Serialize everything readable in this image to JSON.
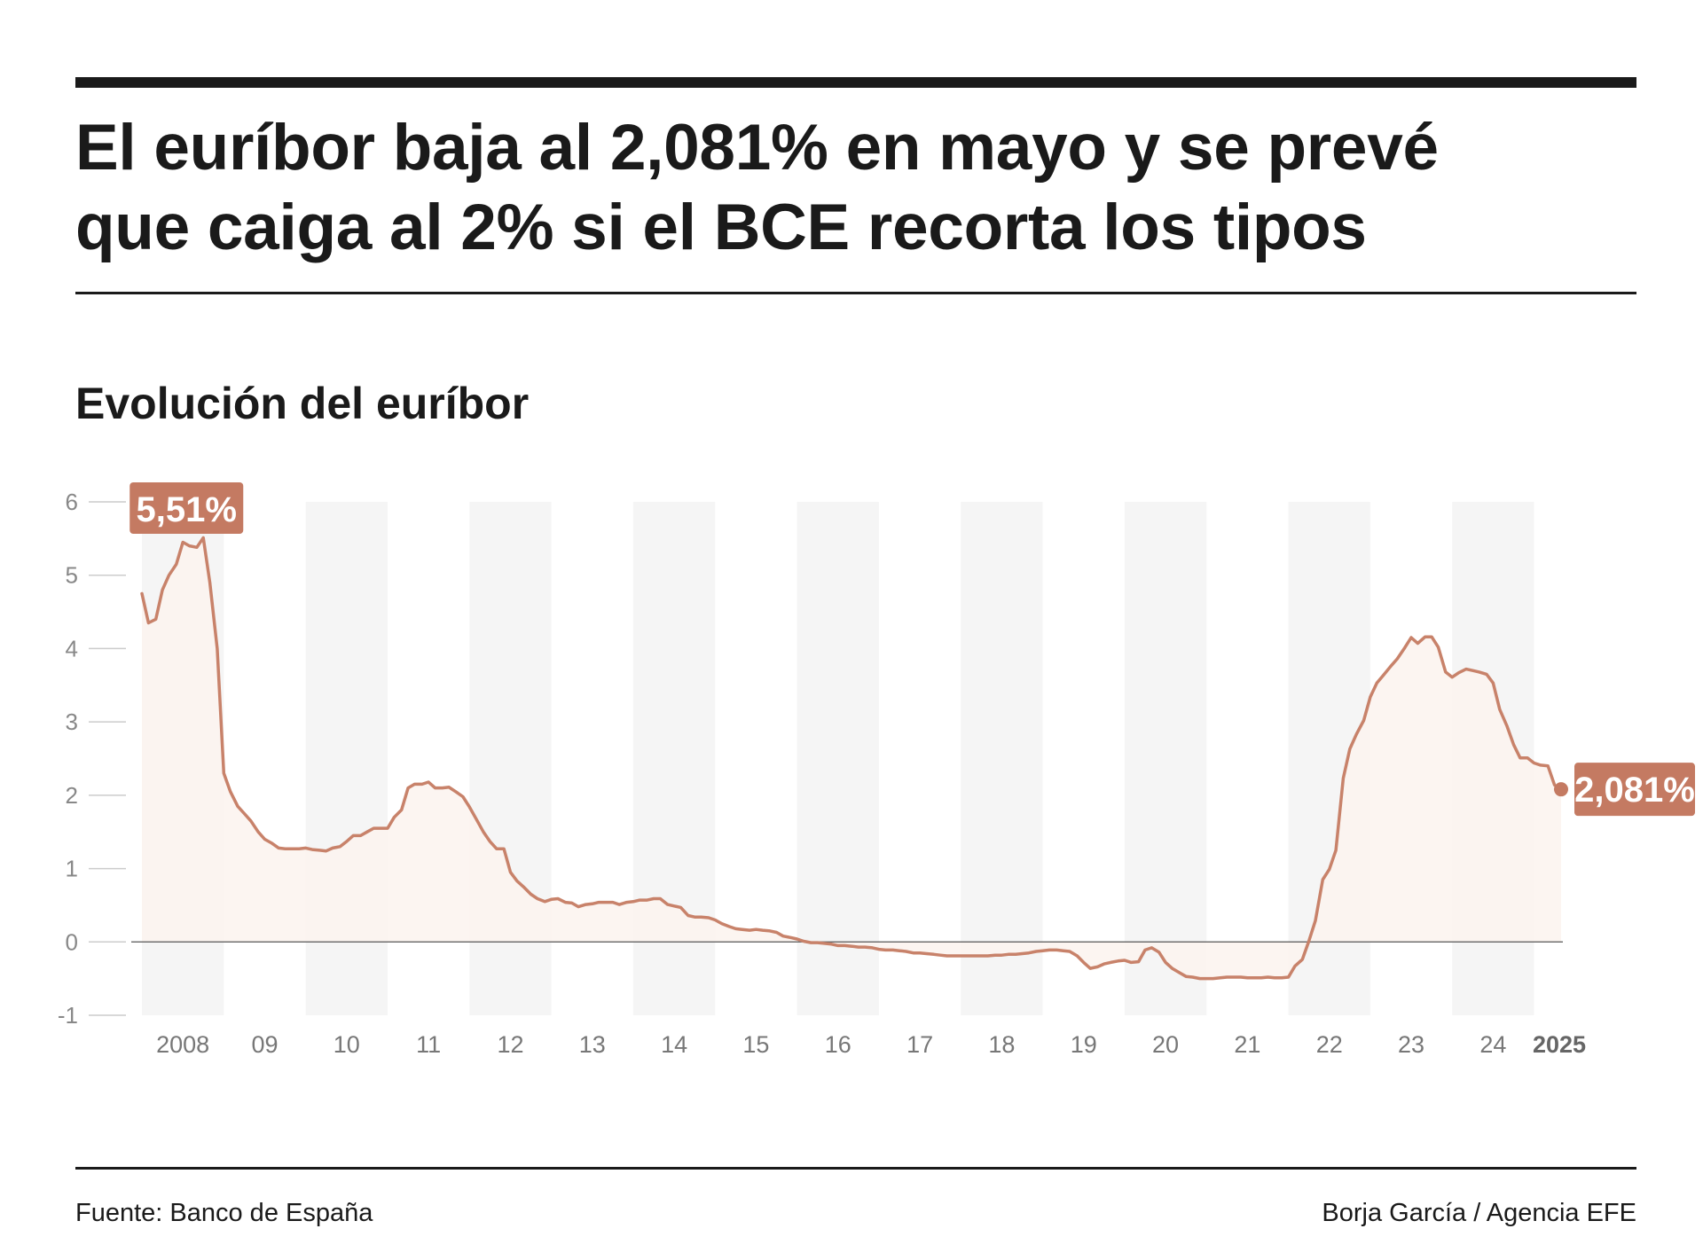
{
  "headline": {
    "line1": "El euríbor baja al 2,081% en mayo y se prevé",
    "line2": "que caiga al 2% si el BCE recorta los tipos"
  },
  "subtitle": "Evolución del euríbor",
  "footer": {
    "source": "Fuente: Banco de España",
    "credit": "Borja García / Agencia EFE"
  },
  "colors": {
    "line": "#c8826a",
    "fill": "#fbf3ef",
    "band": "#f5f5f5",
    "badge": "#c47a62"
  },
  "chart_data": {
    "type": "area",
    "title": "Evolución del euríbor",
    "xlabel": "",
    "ylabel": "",
    "ylim": [
      -1,
      6
    ],
    "yticks": [
      6,
      5,
      4,
      3,
      2,
      1,
      0,
      -1
    ],
    "grid": false,
    "x_tick_labels": [
      {
        "year": 2008,
        "label": "2008",
        "bold": false
      },
      {
        "year": 2009,
        "label": "09",
        "bold": false
      },
      {
        "year": 2010,
        "label": "10",
        "bold": false
      },
      {
        "year": 2011,
        "label": "11",
        "bold": false
      },
      {
        "year": 2012,
        "label": "12",
        "bold": false
      },
      {
        "year": 2013,
        "label": "13",
        "bold": false
      },
      {
        "year": 2014,
        "label": "14",
        "bold": false
      },
      {
        "year": 2015,
        "label": "15",
        "bold": false
      },
      {
        "year": 2016,
        "label": "16",
        "bold": false
      },
      {
        "year": 2017,
        "label": "17",
        "bold": false
      },
      {
        "year": 2018,
        "label": "18",
        "bold": false
      },
      {
        "year": 2019,
        "label": "19",
        "bold": false
      },
      {
        "year": 2020,
        "label": "20",
        "bold": false
      },
      {
        "year": 2021,
        "label": "21",
        "bold": false
      },
      {
        "year": 2022,
        "label": "22",
        "bold": false
      },
      {
        "year": 2023,
        "label": "23",
        "bold": false
      },
      {
        "year": 2024,
        "label": "24",
        "bold": false
      },
      {
        "year": 2025,
        "label": "2025",
        "bold": true
      }
    ],
    "annotations": [
      {
        "text": "5,51%",
        "x": 2008.75,
        "y": 5.51
      },
      {
        "text": "2,081%",
        "x": 2025.33,
        "y": 2.081
      }
    ],
    "series": [
      {
        "x": [
          2008.0,
          2008.08,
          2008.17,
          2008.25,
          2008.33,
          2008.42,
          2008.5,
          2008.58,
          2008.67,
          2008.75,
          2008.83,
          2008.92,
          2009.0,
          2009.08,
          2009.17,
          2009.25,
          2009.33,
          2009.42,
          2009.5,
          2009.58,
          2009.67,
          2009.75,
          2009.83,
          2009.92,
          2010.0,
          2010.08,
          2010.17,
          2010.25,
          2010.33,
          2010.42,
          2010.5,
          2010.58,
          2010.67,
          2010.75,
          2010.83,
          2010.92,
          2011.0,
          2011.08,
          2011.17,
          2011.25,
          2011.33,
          2011.42,
          2011.5,
          2011.58,
          2011.67,
          2011.75,
          2011.83,
          2011.92,
          2012.0,
          2012.08,
          2012.17,
          2012.25,
          2012.33,
          2012.42,
          2012.5,
          2012.58,
          2012.67,
          2012.75,
          2012.83,
          2012.92,
          2013.0,
          2013.08,
          2013.17,
          2013.25,
          2013.33,
          2013.42,
          2013.5,
          2013.58,
          2013.67,
          2013.75,
          2013.83,
          2013.92,
          2014.0,
          2014.08,
          2014.17,
          2014.25,
          2014.33,
          2014.42,
          2014.5,
          2014.58,
          2014.67,
          2014.75,
          2014.83,
          2014.92,
          2015.0,
          2015.08,
          2015.17,
          2015.25,
          2015.33,
          2015.42,
          2015.5,
          2015.58,
          2015.67,
          2015.75,
          2015.83,
          2015.92,
          2016.0,
          2016.08,
          2016.17,
          2016.25,
          2016.33,
          2016.42,
          2016.5,
          2016.58,
          2016.67,
          2016.75,
          2016.83,
          2016.92,
          2017.0,
          2017.08,
          2017.17,
          2017.25,
          2017.33,
          2017.42,
          2017.5,
          2017.58,
          2017.67,
          2017.75,
          2017.83,
          2017.92,
          2018.0,
          2018.08,
          2018.17,
          2018.25,
          2018.33,
          2018.42,
          2018.5,
          2018.58,
          2018.67,
          2018.75,
          2018.83,
          2018.92,
          2019.0,
          2019.08,
          2019.17,
          2019.25,
          2019.33,
          2019.42,
          2019.5,
          2019.58,
          2019.67,
          2019.75,
          2019.83,
          2019.92,
          2020.0,
          2020.08,
          2020.17,
          2020.25,
          2020.33,
          2020.42,
          2020.5,
          2020.58,
          2020.67,
          2020.75,
          2020.83,
          2020.92,
          2021.0,
          2021.08,
          2021.17,
          2021.25,
          2021.33,
          2021.42,
          2021.5,
          2021.58,
          2021.67,
          2021.75,
          2021.83,
          2021.92,
          2022.0,
          2022.08,
          2022.17,
          2022.25,
          2022.33,
          2022.42,
          2022.5,
          2022.58,
          2022.67,
          2022.75,
          2022.83,
          2022.92,
          2023.0,
          2023.08,
          2023.17,
          2023.25,
          2023.33,
          2023.42,
          2023.5,
          2023.58,
          2023.67,
          2023.75,
          2023.83,
          2023.92,
          2024.0,
          2024.08,
          2024.17,
          2024.25,
          2024.33,
          2024.42,
          2024.5,
          2024.58,
          2024.67,
          2024.75,
          2024.83,
          2024.92,
          2025.0,
          2025.08,
          2025.17,
          2025.25,
          2025.33
        ],
        "values": [
          4.75,
          4.35,
          4.4,
          4.8,
          5.0,
          5.15,
          5.45,
          5.4,
          5.38,
          5.51,
          4.9,
          4.0,
          2.3,
          2.05,
          1.85,
          1.75,
          1.65,
          1.5,
          1.4,
          1.35,
          1.28,
          1.27,
          1.27,
          1.27,
          1.28,
          1.26,
          1.25,
          1.24,
          1.28,
          1.3,
          1.37,
          1.45,
          1.45,
          1.5,
          1.55,
          1.55,
          1.55,
          1.7,
          1.8,
          2.1,
          2.15,
          2.15,
          2.18,
          2.1,
          2.1,
          2.11,
          2.05,
          1.98,
          1.84,
          1.68,
          1.5,
          1.37,
          1.27,
          1.27,
          0.95,
          0.83,
          0.74,
          0.65,
          0.59,
          0.55,
          0.58,
          0.59,
          0.54,
          0.53,
          0.48,
          0.51,
          0.52,
          0.54,
          0.54,
          0.54,
          0.51,
          0.54,
          0.55,
          0.57,
          0.57,
          0.59,
          0.59,
          0.51,
          0.49,
          0.47,
          0.36,
          0.34,
          0.34,
          0.33,
          0.3,
          0.25,
          0.21,
          0.18,
          0.17,
          0.16,
          0.17,
          0.16,
          0.15,
          0.13,
          0.08,
          0.06,
          0.04,
          0.01,
          -0.01,
          -0.01,
          -0.02,
          -0.03,
          -0.05,
          -0.05,
          -0.06,
          -0.07,
          -0.07,
          -0.08,
          -0.1,
          -0.11,
          -0.11,
          -0.12,
          -0.13,
          -0.15,
          -0.15,
          -0.16,
          -0.17,
          -0.18,
          -0.19,
          -0.19,
          -0.19,
          -0.19,
          -0.19,
          -0.19,
          -0.19,
          -0.18,
          -0.18,
          -0.17,
          -0.17,
          -0.16,
          -0.15,
          -0.13,
          -0.12,
          -0.11,
          -0.11,
          -0.12,
          -0.13,
          -0.19,
          -0.28,
          -0.36,
          -0.34,
          -0.3,
          -0.28,
          -0.26,
          -0.25,
          -0.28,
          -0.27,
          -0.11,
          -0.08,
          -0.14,
          -0.28,
          -0.36,
          -0.42,
          -0.47,
          -0.48,
          -0.5,
          -0.5,
          -0.5,
          -0.49,
          -0.48,
          -0.48,
          -0.48,
          -0.49,
          -0.49,
          -0.49,
          -0.48,
          -0.49,
          -0.49,
          -0.48,
          -0.33,
          -0.24,
          0.01,
          0.29,
          0.85,
          0.99,
          1.25,
          2.23,
          2.63,
          2.83,
          3.02,
          3.34,
          3.53,
          3.65,
          3.76,
          3.86,
          4.01,
          4.15,
          4.07,
          4.16,
          4.16,
          4.02,
          3.68,
          3.61,
          3.67,
          3.72,
          3.7,
          3.68,
          3.65,
          3.53,
          3.17,
          2.94,
          2.69,
          2.51,
          2.51,
          2.44,
          2.41,
          2.4,
          2.14,
          2.081
        ]
      }
    ]
  }
}
